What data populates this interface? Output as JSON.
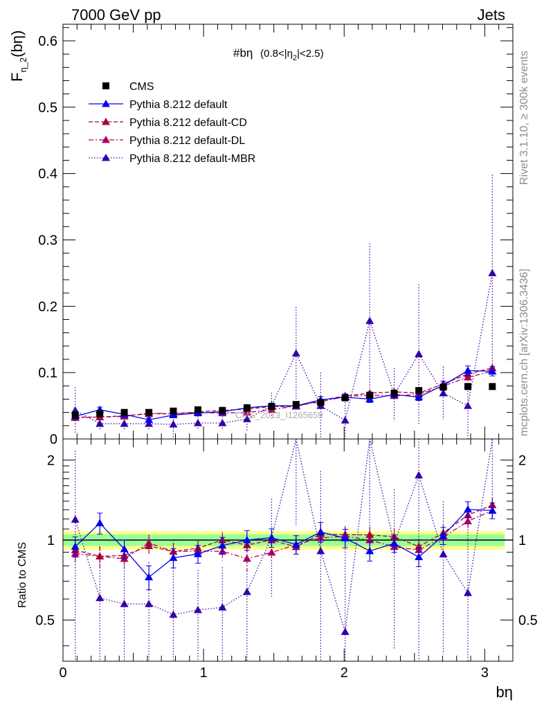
{
  "header": {
    "left": "7000 GeV pp",
    "right": "Jets",
    "rivet": "Rivet 3.1.10, ≥ 300k events",
    "mcplots": "mcplots.cern.ch [arXiv:1306.3436]"
  },
  "watermark": "CMS_2013_I1265659",
  "plot_title": {
    "main": "#bη",
    "range": "(0.8<|η",
    "range_sub": "2",
    "range_end": "|<2.5)"
  },
  "ylabel_main": {
    "base": "F",
    "sub": "η_2",
    "rest": "(bη)"
  },
  "ylabel_ratio": "Ratio to CMS",
  "xlabel": "bη",
  "legend": [
    {
      "label": "CMS",
      "color": "#000000",
      "style": "solid",
      "marker": "square"
    },
    {
      "label": "Pythia 8.212 default",
      "color": "#0000ee",
      "style": "solid",
      "marker": "triangle"
    },
    {
      "label": "Pythia 8.212 default-CD",
      "color": "#a8003a",
      "style": "dashed",
      "marker": "triangle"
    },
    {
      "label": "Pythia 8.212 default-DL",
      "color": "#aa0066",
      "style": "dashdot",
      "marker": "triangle"
    },
    {
      "label": "Pythia 8.212 default-MBR",
      "color": "#3300aa",
      "style": "dotted",
      "marker": "triangle"
    }
  ],
  "chart_data": {
    "type": "scatter",
    "x": [
      0.087,
      0.262,
      0.436,
      0.611,
      0.785,
      0.96,
      1.134,
      1.309,
      1.484,
      1.658,
      1.833,
      2.007,
      2.182,
      2.356,
      2.531,
      2.705,
      2.88,
      3.054
    ],
    "xlim": [
      0,
      3.2
    ],
    "ylim": [
      0,
      0.625
    ],
    "ratio_ylim": [
      0.35,
      2.4
    ],
    "xticks": [
      0,
      1,
      2,
      3
    ],
    "yticks": [
      0,
      0.1,
      0.2,
      0.3,
      0.4,
      0.5,
      0.6
    ],
    "ratio_yticks": [
      0.5,
      1,
      2
    ],
    "xtick_labels": [
      "0",
      "1",
      "2",
      "3"
    ],
    "ytick_labels": [
      "0",
      "0.1",
      "0.2",
      "0.3",
      "0.4",
      "0.5",
      "0.6"
    ],
    "ratio_ytick_labels": [
      "0.5",
      "1",
      "2"
    ],
    "band": {
      "green": 0.05,
      "yellow": 0.08
    },
    "series": [
      {
        "name": "CMS",
        "values": [
          0.036,
          0.038,
          0.04,
          0.04,
          0.042,
          0.044,
          0.043,
          0.047,
          0.049,
          0.052,
          0.055,
          0.062,
          0.066,
          0.069,
          0.073,
          0.078,
          0.079,
          0.079
        ]
      },
      {
        "name": "Pythia 8.212 default",
        "values": [
          0.034,
          0.044,
          0.037,
          0.029,
          0.036,
          0.039,
          0.041,
          0.047,
          0.05,
          0.05,
          0.059,
          0.063,
          0.06,
          0.067,
          0.063,
          0.081,
          0.103,
          0.102
        ]
      },
      {
        "name": "Pythia 8.212 default-CD",
        "values": [
          0.033,
          0.033,
          0.035,
          0.038,
          0.038,
          0.041,
          0.043,
          0.045,
          0.049,
          0.049,
          0.058,
          0.065,
          0.069,
          0.071,
          0.069,
          0.083,
          0.098,
          0.107
        ]
      },
      {
        "name": "Pythia 8.212 default-DL",
        "values": [
          0.032,
          0.033,
          0.034,
          0.039,
          0.038,
          0.04,
          0.039,
          0.04,
          0.044,
          0.05,
          0.056,
          0.064,
          0.066,
          0.065,
          0.067,
          0.08,
          0.093,
          0.102
        ]
      },
      {
        "name": "Pythia 8.212 default-MBR",
        "values": [
          0.043,
          0.023,
          0.023,
          0.023,
          0.022,
          0.024,
          0.024,
          0.03,
          0.05,
          0.129,
          0.05,
          0.028,
          0.178,
          0.067,
          0.128,
          0.069,
          0.05,
          0.25
        ]
      }
    ],
    "errors": [
      [
        0.0015,
        0.0015,
        0.0015,
        0.0015,
        0.0015,
        0.0015,
        0.0015,
        0.002,
        0.002,
        0.002,
        0.002,
        0.002,
        0.002,
        0.002,
        0.002,
        0.003,
        0.003,
        0.003
      ],
      [
        0.003,
        0.004,
        0.003,
        0.003,
        0.003,
        0.003,
        0.003,
        0.004,
        0.004,
        0.004,
        0.005,
        0.005,
        0.005,
        0.005,
        0.005,
        0.006,
        0.007,
        0.007
      ],
      [
        0.003,
        0.003,
        0.003,
        0.003,
        0.003,
        0.003,
        0.003,
        0.004,
        0.004,
        0.004,
        0.005,
        0.005,
        0.005,
        0.005,
        0.005,
        0.006,
        0.007,
        0.007
      ],
      [
        0.003,
        0.003,
        0.003,
        0.003,
        0.003,
        0.003,
        0.003,
        0.004,
        0.004,
        0.004,
        0.005,
        0.005,
        0.005,
        0.005,
        0.005,
        0.006,
        0.007,
        0.007
      ],
      [
        0.035,
        0.01,
        0.01,
        0.01,
        0.02,
        0.01,
        0.01,
        0.018,
        0.02,
        0.07,
        0.05,
        0.04,
        0.117,
        0.04,
        0.105,
        0.04,
        0.06,
        0.148
      ]
    ]
  }
}
